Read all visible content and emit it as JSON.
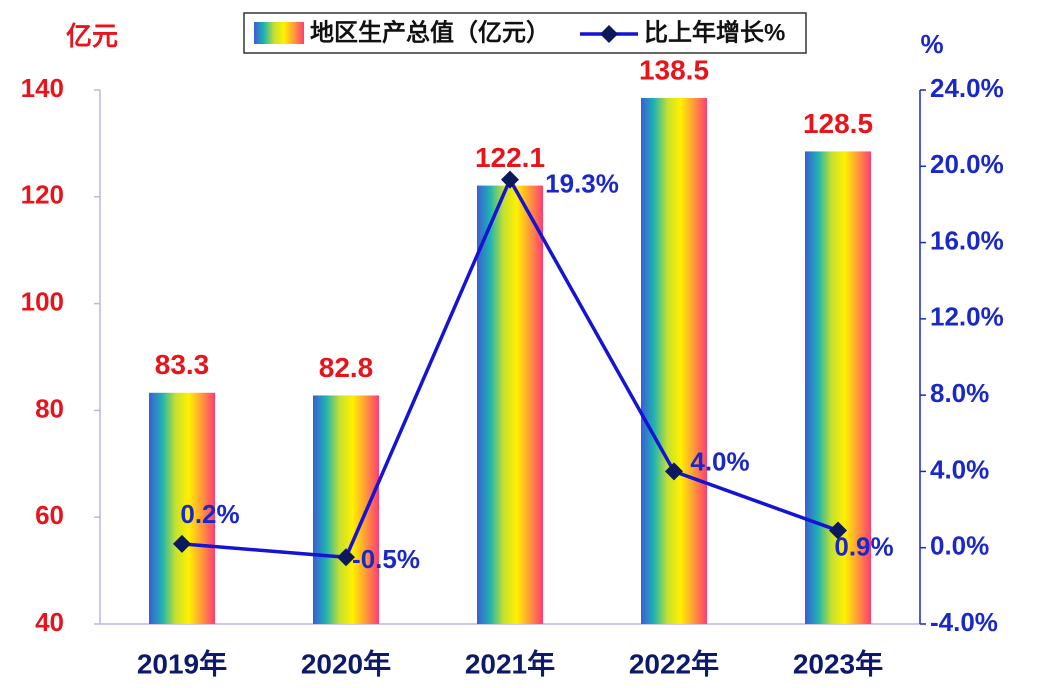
{
  "chart_data": {
    "type": "bar",
    "y_label": "亿元",
    "y2_label": "%",
    "categories": [
      "2019年",
      "2020年",
      "2021年",
      "2022年",
      "2023年"
    ],
    "series": [
      {
        "name": "地区生产总值（亿元）",
        "type": "bar",
        "colors": [
          "#3b5cd8",
          "#1fb4b0",
          "#c4e030",
          "#fff000",
          "#ff9a3a",
          "#ff3c74"
        ],
        "values": [
          83.3,
          82.8,
          122.1,
          138.5,
          128.5
        ]
      },
      {
        "name": "比上年增长%",
        "type": "line",
        "axis": "y2",
        "color": "#1414d2",
        "marker_color": "#0c1a5c",
        "values": [
          0.2,
          -0.5,
          19.3,
          4.0,
          0.9
        ],
        "value_labels": [
          "0.2%",
          "-0.5%",
          "19.3%",
          "4.0%",
          "0.9%"
        ]
      }
    ],
    "ylim": [
      40,
      140
    ],
    "yticks": [
      40,
      60,
      80,
      100,
      120,
      140
    ],
    "y2lim": [
      -4,
      24
    ],
    "y2ticks": [
      {
        "value": -4,
        "label": "-4.0%"
      },
      {
        "value": 0,
        "label": "0.0%"
      },
      {
        "value": 4,
        "label": "4.0%"
      },
      {
        "value": 8,
        "label": "8.0%"
      },
      {
        "value": 12,
        "label": "12.0%"
      },
      {
        "value": 16,
        "label": "16.0%"
      },
      {
        "value": 20,
        "label": "20.0%"
      },
      {
        "value": 24,
        "label": "24.0%"
      }
    ],
    "grid": false
  }
}
